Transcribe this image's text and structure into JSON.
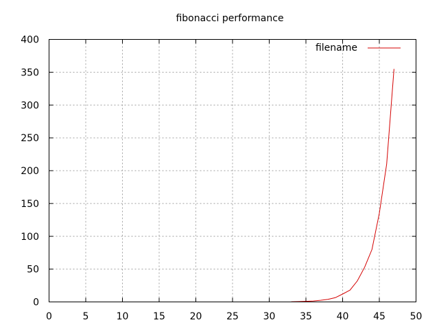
{
  "chart_data": {
    "type": "line",
    "title": "fibonacci performance",
    "xlabel": "",
    "ylabel": "",
    "xlim": [
      0,
      50
    ],
    "ylim": [
      0,
      400
    ],
    "xticks": [
      "0",
      "5",
      "10",
      "15",
      "20",
      "25",
      "30",
      "35",
      "40",
      "45",
      "50"
    ],
    "yticks": [
      "0",
      "50",
      "100",
      "150",
      "200",
      "250",
      "300",
      "350",
      "400"
    ],
    "grid": true,
    "legend_position": "top-right",
    "series": [
      {
        "name": "filename",
        "color": "#d40000",
        "x": [
          33,
          34,
          35,
          36,
          37,
          38,
          39,
          40,
          41,
          42,
          43,
          44,
          45,
          46,
          47
        ],
        "y": [
          0.3,
          0.5,
          0.9,
          1.5,
          2.5,
          4,
          6.5,
          12,
          18,
          32,
          53,
          80,
          135,
          210,
          355
        ]
      }
    ]
  }
}
